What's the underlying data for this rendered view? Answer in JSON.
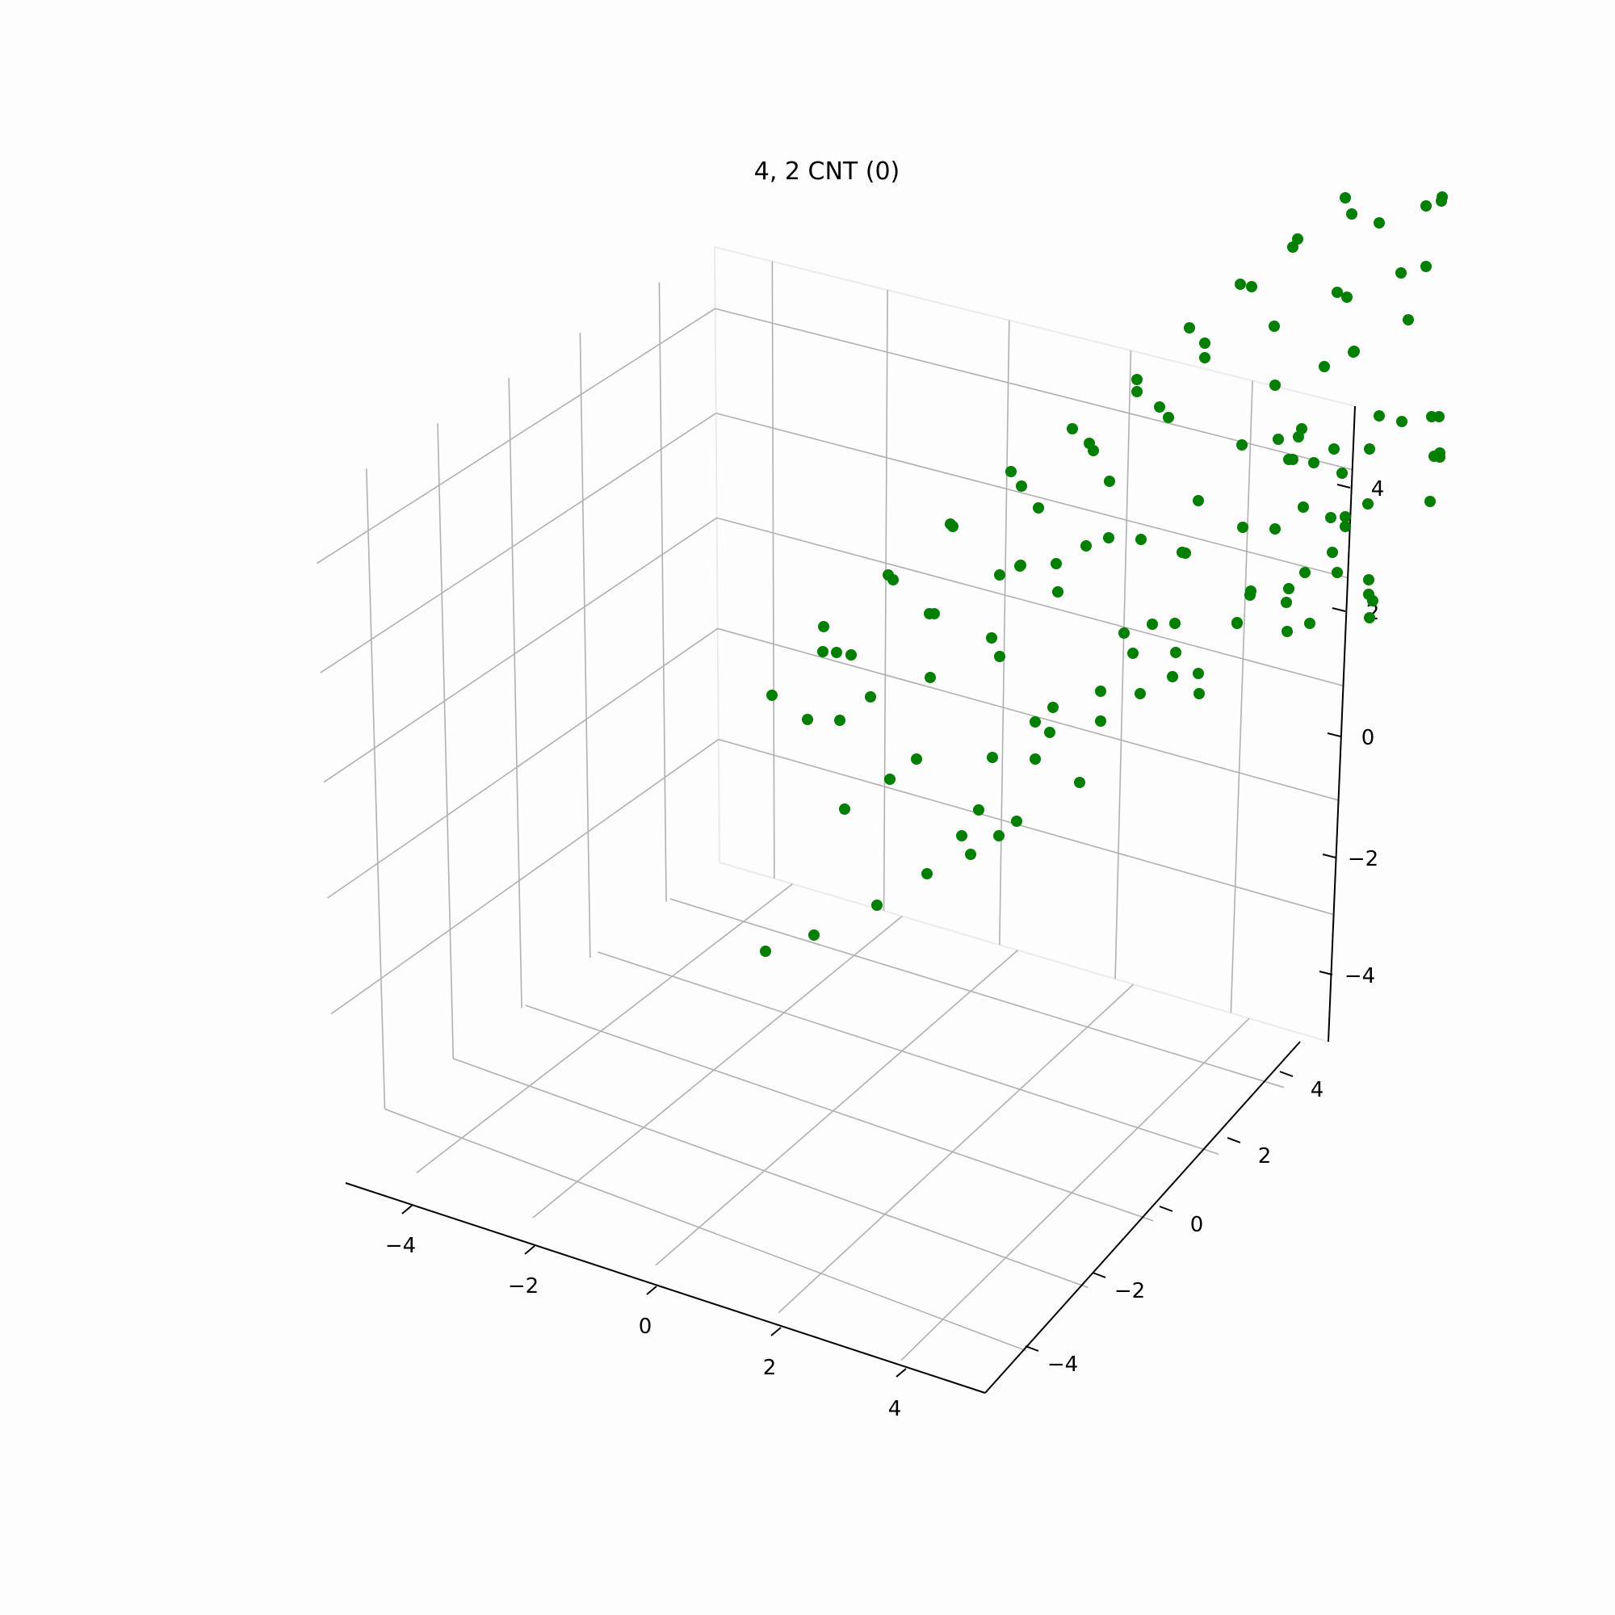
{
  "chart_data": {
    "type": "scatter",
    "title": "4, 2 CNT (0)",
    "marker_color": "#007f00",
    "x_ticks": [
      "−4",
      "−2",
      "0",
      "2",
      "4"
    ],
    "y_ticks": [
      "−4",
      "−2",
      "0",
      "2",
      "4"
    ],
    "z_ticks": [
      "−4",
      "−2",
      "0",
      "2",
      "4"
    ],
    "xlim": [
      -5,
      5
    ],
    "ylim": [
      -5,
      5
    ],
    "zlim": [
      -5,
      5
    ],
    "grid": true,
    "points": [
      [
        948,
        1178
      ],
      [
        1008,
        1158
      ],
      [
        1086,
        1121
      ],
      [
        1148,
        1082
      ],
      [
        1202,
        1058
      ],
      [
        1191,
        1035
      ],
      [
        1237,
        1035
      ],
      [
        1259,
        1017
      ],
      [
        1212,
        1003
      ],
      [
        1046,
        1002
      ],
      [
        1102,
        965
      ],
      [
        1040,
        892
      ],
      [
        1078,
        863
      ],
      [
        1135,
        940
      ],
      [
        1229,
        938
      ],
      [
        1337,
        969
      ],
      [
        1282,
        940
      ],
      [
        1300,
        907
      ],
      [
        1282,
        894
      ],
      [
        1304,
        876
      ],
      [
        1363,
        893
      ],
      [
        1485,
        859
      ],
      [
        1452,
        838
      ],
      [
        1363,
        856
      ],
      [
        1412,
        859
      ],
      [
        956,
        861
      ],
      [
        1000,
        891
      ],
      [
        1019,
        807
      ],
      [
        1020,
        776
      ],
      [
        1036,
        808
      ],
      [
        1054,
        811
      ],
      [
        1100,
        712
      ],
      [
        1106,
        718
      ],
      [
        1152,
        839
      ],
      [
        1151,
        760
      ],
      [
        1228,
        790
      ],
      [
        1238,
        813
      ],
      [
        1238,
        712
      ],
      [
        1157,
        760
      ],
      [
        1263,
        701
      ],
      [
        1345,
        676
      ],
      [
        1310,
        733
      ],
      [
        1264,
        700
      ],
      [
        1392,
        784
      ],
      [
        1403,
        809
      ],
      [
        1427,
        773
      ],
      [
        1456,
        808
      ],
      [
        1484,
        834
      ],
      [
        1455,
        772
      ],
      [
        1177,
        649
      ],
      [
        1180,
        652
      ],
      [
        1252,
        584
      ],
      [
        1265,
        602
      ],
      [
        1286,
        629
      ],
      [
        1308,
        698
      ],
      [
        1328,
        531
      ],
      [
        1349,
        549
      ],
      [
        1354,
        558
      ],
      [
        1374,
        596
      ],
      [
        1373,
        666
      ],
      [
        1413,
        668
      ],
      [
        1436,
        504
      ],
      [
        1447,
        517
      ],
      [
        1464,
        684
      ],
      [
        1468,
        685
      ],
      [
        1484,
        620
      ],
      [
        1532,
        771
      ],
      [
        1548,
        737
      ],
      [
        1549,
        732
      ],
      [
        1532,
        772
      ],
      [
        1579,
        655
      ],
      [
        1593,
        746
      ],
      [
        1594,
        782
      ],
      [
        1616,
        709
      ],
      [
        1538,
        551
      ],
      [
        1539,
        653
      ],
      [
        1583,
        544
      ],
      [
        1652,
        556
      ],
      [
        1614,
        628
      ],
      [
        1596,
        729
      ],
      [
        1408,
        470
      ],
      [
        1408,
        485
      ],
      [
        1473,
        406
      ],
      [
        1492,
        425
      ],
      [
        1492,
        443
      ],
      [
        1578,
        404
      ],
      [
        1579,
        477
      ],
      [
        1612,
        531
      ],
      [
        1601,
        569
      ],
      [
        1627,
        573
      ],
      [
        1662,
        586
      ],
      [
        1648,
        641
      ],
      [
        1666,
        652
      ],
      [
        1596,
        569
      ],
      [
        1608,
        541
      ],
      [
        1536,
        352
      ],
      [
        1550,
        355
      ],
      [
        1601,
        306
      ],
      [
        1607,
        296
      ],
      [
        1666,
        245
      ],
      [
        1674,
        265
      ],
      [
        1708,
        276
      ],
      [
        1735,
        338
      ],
      [
        1766,
        255
      ],
      [
        1785,
        249
      ],
      [
        1786,
        244
      ],
      [
        1640,
        454
      ],
      [
        1676,
        436
      ],
      [
        1656,
        362
      ],
      [
        1668,
        368
      ],
      [
        1677,
        435
      ],
      [
        1708,
        515
      ],
      [
        1736,
        522
      ],
      [
        1744,
        396
      ],
      [
        1766,
        330
      ],
      [
        1782,
        516
      ],
      [
        1783,
        561
      ],
      [
        1771,
        621
      ],
      [
        1650,
        684
      ],
      [
        1695,
        718
      ],
      [
        1700,
        744
      ],
      [
        1696,
        765
      ],
      [
        1695,
        736
      ],
      [
        1656,
        709
      ],
      [
        1694,
        624
      ],
      [
        1622,
        772
      ],
      [
        1666,
        640
      ],
      [
        1696,
        556
      ],
      [
        1773,
        516
      ],
      [
        1776,
        565
      ],
      [
        1783,
        566
      ]
    ]
  }
}
